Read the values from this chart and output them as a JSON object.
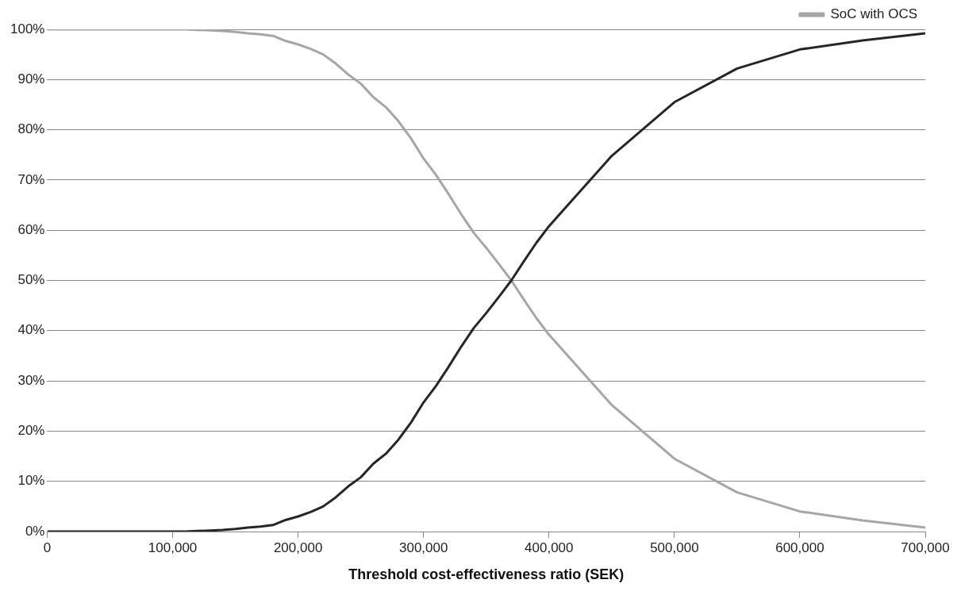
{
  "chart_data": {
    "type": "line",
    "xlabel": "Threshold cost-effectiveness ratio (SEK)",
    "x": [
      0,
      50000,
      100000,
      110000,
      120000,
      130000,
      140000,
      150000,
      160000,
      170000,
      180000,
      190000,
      200000,
      210000,
      220000,
      230000,
      240000,
      250000,
      260000,
      270000,
      280000,
      290000,
      300000,
      310000,
      320000,
      330000,
      340000,
      350000,
      360000,
      370000,
      380000,
      390000,
      400000,
      450000,
      500000,
      550000,
      600000,
      650000,
      700000
    ],
    "series": [
      {
        "color": "#262626",
        "values": [
          0,
          0,
          0,
          0,
          0.1,
          0.2,
          0.3,
          0.5,
          0.8,
          1,
          1.3,
          2.3,
          3,
          3.9,
          5,
          6.8,
          9,
          10.8,
          13.5,
          15.5,
          18.3,
          21.7,
          25.7,
          29,
          32.8,
          36.8,
          40.5,
          43.5,
          46.7,
          50,
          53.8,
          57.5,
          60.8,
          74.8,
          85.5,
          92.2,
          96,
          97.8,
          99.2
        ]
      },
      {
        "name": "SoC with OCS",
        "color": "#a6a6a6",
        "values": [
          100,
          100,
          100,
          100,
          99.9,
          99.8,
          99.7,
          99.5,
          99.2,
          99,
          98.7,
          97.7,
          97,
          96.1,
          95,
          93.2,
          91,
          89.2,
          86.5,
          84.5,
          81.7,
          78.3,
          74.3,
          71,
          67.2,
          63.2,
          59.5,
          56.5,
          53.3,
          50,
          46.2,
          42.5,
          39.2,
          25.2,
          14.5,
          7.8,
          4,
          2.2,
          0.8
        ]
      }
    ],
    "xlim": [
      0,
      700000
    ],
    "xticks": [
      {
        "value": 0,
        "label": "0"
      },
      {
        "value": 100000,
        "label": "100,000"
      },
      {
        "value": 200000,
        "label": "200,000"
      },
      {
        "value": 300000,
        "label": "300,000"
      },
      {
        "value": 400000,
        "label": "400,000"
      },
      {
        "value": 500000,
        "label": "500,000"
      },
      {
        "value": 600000,
        "label": "600,000"
      },
      {
        "value": 700000,
        "label": "700,000"
      }
    ],
    "ylim": [
      0,
      100
    ],
    "yticks": [
      {
        "value": 0,
        "label": "0%"
      },
      {
        "value": 10,
        "label": "10%"
      },
      {
        "value": 20,
        "label": "20%"
      },
      {
        "value": 30,
        "label": "30%"
      },
      {
        "value": 40,
        "label": "40%"
      },
      {
        "value": 50,
        "label": "50%"
      },
      {
        "value": 60,
        "label": "60%"
      },
      {
        "value": 70,
        "label": "70%"
      },
      {
        "value": 80,
        "label": "80%"
      },
      {
        "value": 90,
        "label": "90%"
      },
      {
        "value": 100,
        "label": "100%"
      }
    ],
    "grid": "y",
    "legend": "top right",
    "marker": "none",
    "line_style": "solid"
  }
}
